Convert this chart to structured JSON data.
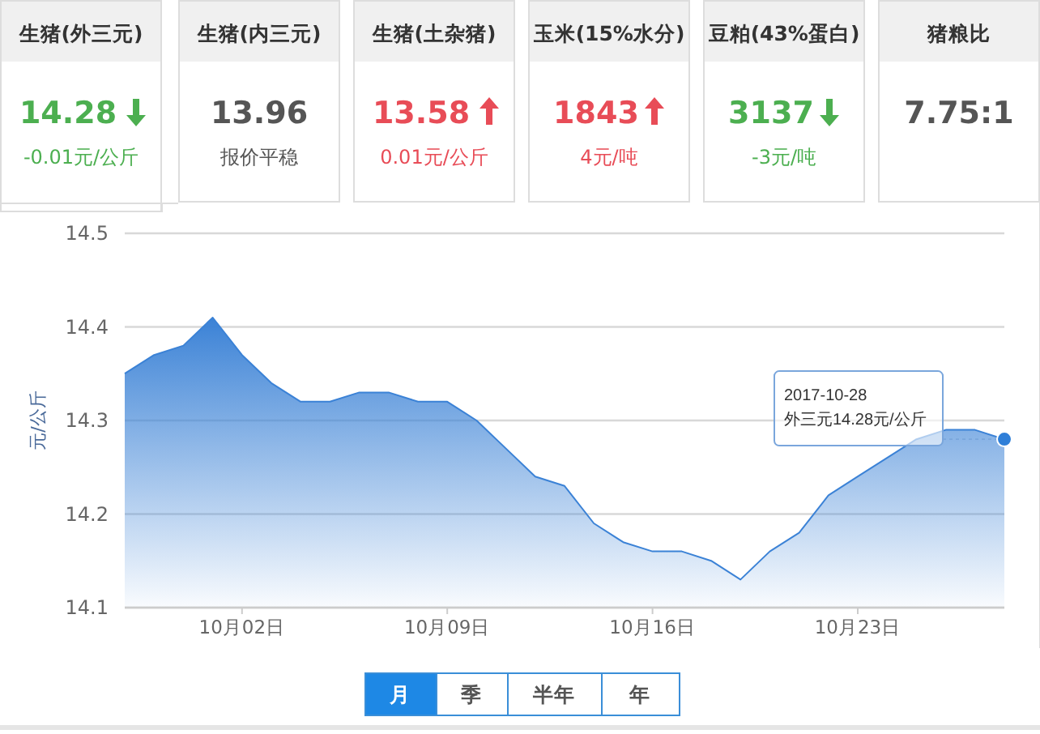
{
  "chart_data": [
    {
      "type": "other",
      "values": [
        14.28,
        13.96,
        13.58,
        1843,
        3137,
        7.75
      ],
      "value_labels": [
        "14.28",
        "13.96",
        "13.58",
        "1843",
        "3137",
        "7.75:1"
      ],
      "colors": [
        "#4caf50",
        "#555555",
        "#e84c57",
        "#e84c57",
        "#4caf50",
        "#555555"
      ],
      "annotations": [
        "生猪(外三元)",
        "生猪(内三元)",
        "生猪(土杂猪)",
        "玉米(15%水分)",
        "豆粕(43%蛋白)",
        "猪粮比",
        "-0.01元/公斤",
        "报价平稳",
        "0.01元/公斤",
        "4元/吨",
        "-3元/吨"
      ]
    },
    {
      "type": "area",
      "ylabel": "元/公斤",
      "color": "#3b82d6",
      "grid": "y",
      "x": [
        "2017-09-28",
        "2017-09-29",
        "2017-09-30",
        "2017-10-01",
        "2017-10-02",
        "2017-10-03",
        "2017-10-04",
        "2017-10-05",
        "2017-10-06",
        "2017-10-07",
        "2017-10-08",
        "2017-10-09",
        "2017-10-10",
        "2017-10-11",
        "2017-10-12",
        "2017-10-13",
        "2017-10-14",
        "2017-10-15",
        "2017-10-16",
        "2017-10-17",
        "2017-10-18",
        "2017-10-19",
        "2017-10-20",
        "2017-10-21",
        "2017-10-22",
        "2017-10-23",
        "2017-10-24",
        "2017-10-25",
        "2017-10-26",
        "2017-10-27",
        "2017-10-28"
      ],
      "values": [
        14.35,
        14.37,
        14.38,
        14.41,
        14.37,
        14.34,
        14.32,
        14.32,
        14.33,
        14.33,
        14.32,
        14.32,
        14.3,
        14.27,
        14.24,
        14.23,
        14.19,
        14.17,
        14.16,
        14.16,
        14.15,
        14.13,
        14.16,
        14.18,
        14.22,
        14.24,
        14.26,
        14.28,
        14.29,
        14.29,
        14.28
      ],
      "xlim": [
        "2017-09-28",
        "2017-10-28"
      ],
      "xticks": [
        {
          "value": "2017-10-02",
          "label": "10月02日"
        },
        {
          "value": "2017-10-09",
          "label": "10月09日"
        },
        {
          "value": "2017-10-16",
          "label": "10月16日"
        },
        {
          "value": "2017-10-23",
          "label": "10月23日"
        }
      ],
      "ylim": [
        14.1,
        14.5
      ],
      "yticks": [
        14.1,
        14.2,
        14.3,
        14.4,
        14.5
      ],
      "annotations": [
        {
          "text": "2017-10-28\n外三元14.28元/公斤",
          "x": "2017-10-28",
          "y": 14.28
        },
        "月",
        "季",
        "半年",
        "年"
      ]
    }
  ]
}
